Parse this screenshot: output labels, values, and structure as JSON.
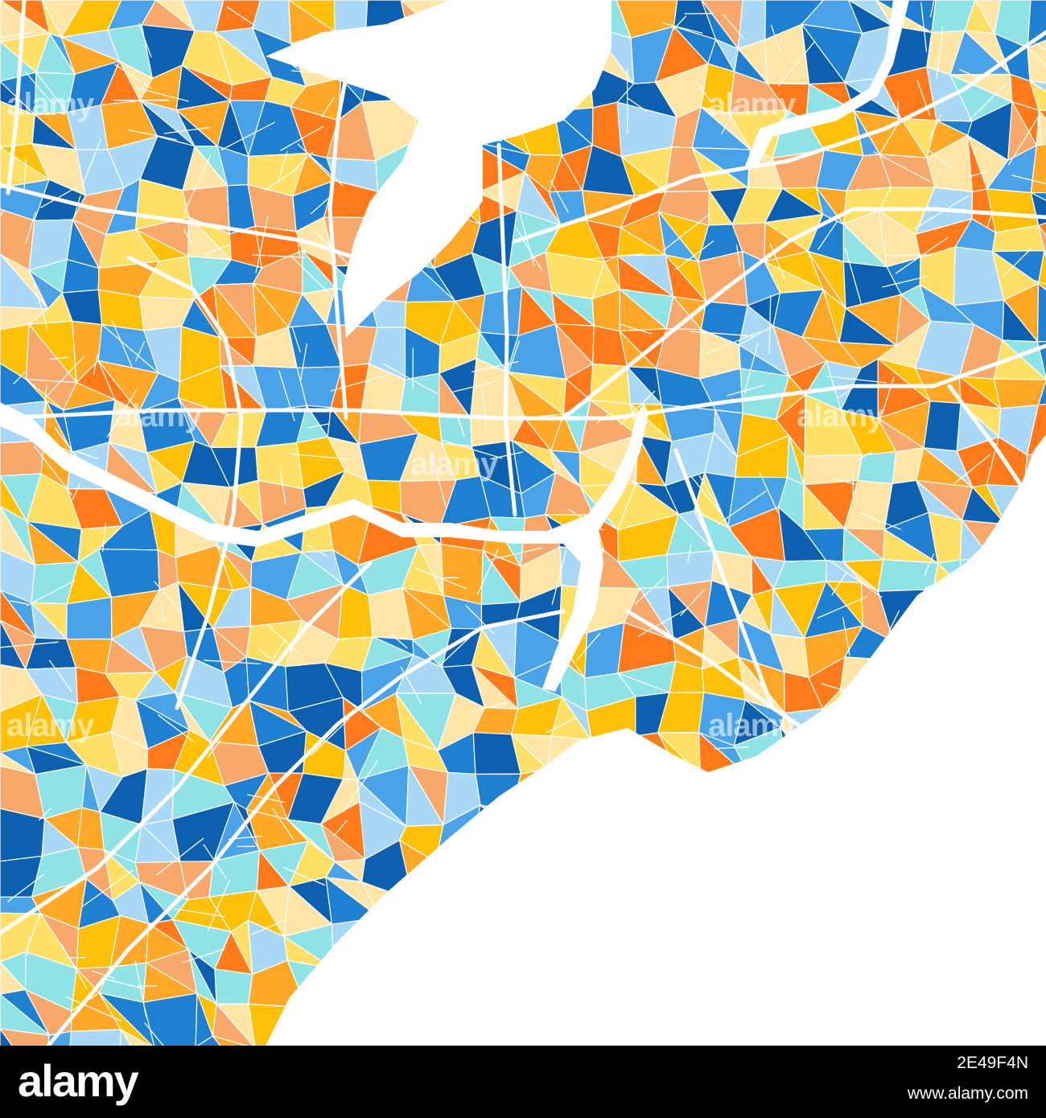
{
  "map": {
    "palette": [
      "#1f7fd0",
      "#4aa3e8",
      "#0d5fb0",
      "#a8d8f5",
      "#8fe3e6",
      "#ffe066",
      "#ffc107",
      "#ffa726",
      "#ff7a1a",
      "#f7a86a",
      "#ffe5a6"
    ],
    "water_color": "#ffffff",
    "road_color": "#ffffff"
  },
  "watermark": {
    "text": "alamy"
  },
  "footer": {
    "brand": "alamy",
    "image_id": "2E49F4N",
    "url": "www.alamy.com"
  }
}
